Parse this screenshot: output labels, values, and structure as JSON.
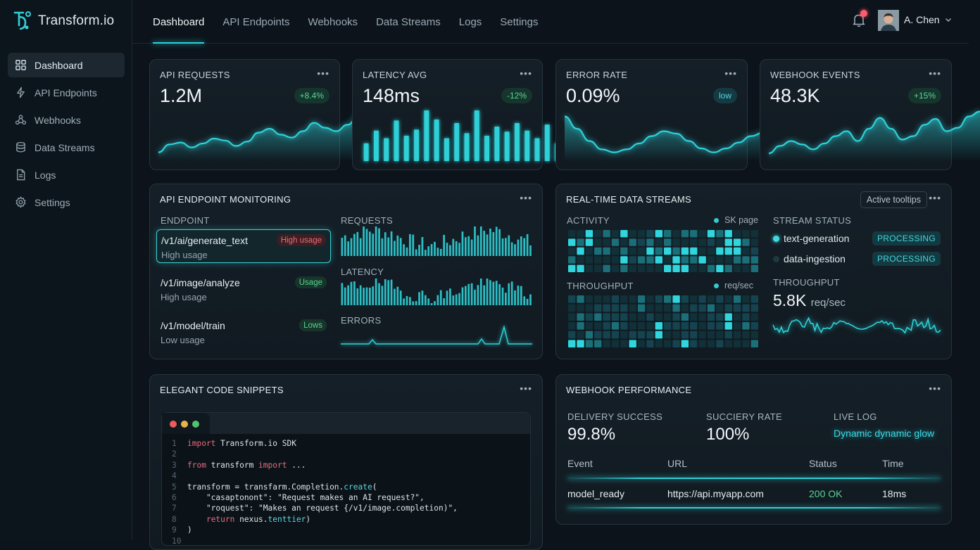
{
  "app": {
    "name": "Transform.io"
  },
  "sidebar": {
    "items": [
      {
        "label": "Dashboard",
        "icon": "grid-icon"
      },
      {
        "label": "API Endpoints",
        "icon": "lightning-icon"
      },
      {
        "label": "Webhooks",
        "icon": "webhook-icon"
      },
      {
        "label": "Data Streams",
        "icon": "database-icon"
      },
      {
        "label": "Logs",
        "icon": "document-icon"
      },
      {
        "label": "Settings",
        "icon": "gear-icon"
      }
    ]
  },
  "topnav": {
    "tabs": [
      "Dashboard",
      "API Endpoints",
      "Webhooks",
      "Data Streams",
      "Logs",
      "Settings"
    ],
    "user": "A. Chen"
  },
  "kpis": [
    {
      "title": "API REQUESTS",
      "value": "1.2M",
      "badge": "+8.4%",
      "chart": "area",
      "trend": [
        0.12,
        0.28,
        0.32,
        0.22,
        0.3,
        0.4,
        0.36,
        0.25,
        0.34,
        0.52,
        0.6,
        0.48,
        0.42,
        0.55,
        0.72,
        0.62,
        0.55,
        0.68,
        0.85,
        0.82
      ]
    },
    {
      "title": "LATENCY AVG",
      "value": "148ms",
      "badge": "-12%",
      "chart": "bars",
      "trend": [
        0.35,
        0.6,
        0.45,
        0.8,
        0.5,
        0.62,
        1.0,
        0.82,
        0.45,
        0.75,
        0.55,
        1.0,
        0.5,
        0.68,
        0.58,
        0.75,
        0.6,
        0.45,
        0.72,
        0.35,
        0.55
      ]
    },
    {
      "title": "ERROR RATE",
      "value": "0.09%",
      "badge": "low",
      "chart": "area",
      "trend": [
        0.85,
        0.6,
        0.35,
        0.18,
        0.12,
        0.18,
        0.3,
        0.45,
        0.55,
        0.5,
        0.35,
        0.2,
        0.12,
        0.2,
        0.32,
        0.45,
        0.52,
        0.42
      ]
    },
    {
      "title": "WEBHOOK EVENTS",
      "value": "48.3K",
      "badge": "+15%",
      "chart": "area",
      "trend": [
        0.1,
        0.25,
        0.35,
        0.28,
        0.18,
        0.3,
        0.45,
        0.55,
        0.35,
        0.6,
        0.82,
        0.6,
        0.38,
        0.45,
        0.68,
        0.8,
        0.55,
        0.62,
        0.85,
        0.95
      ]
    }
  ],
  "endpoint_monitoring": {
    "title": "API ENDPOINT MONITORING",
    "col_endpoint": "ENDPOINT",
    "col_requests": "REQUESTS",
    "col_latency": "LATENCY",
    "col_errors": "ERRORS",
    "endpoints": [
      {
        "path": "/v1/ai/generate_text",
        "badge": "High usage",
        "desc": "High usage"
      },
      {
        "path": "/v1/image/analyze",
        "badge": "Usage",
        "desc": "High usage"
      },
      {
        "path": "/v1/model/train",
        "badge": "Lows",
        "desc": "Low usage"
      }
    ]
  },
  "streams": {
    "title": "REAL-TIME DATA STREAMS",
    "tooltip_button": "Active tooltips",
    "activity_label": "ACTIVITY",
    "activity_legend": "SK page",
    "throughput_label": "THROUGHPUT",
    "throughput_legend": "req/sec",
    "status_label": "STREAM STATUS",
    "items": [
      {
        "name": "text-generation",
        "status": "PROCESSING"
      },
      {
        "name": "data-ingestion",
        "status": "PROCESSING"
      }
    ],
    "throughput_label2": "THROUGHPUT",
    "throughput_value": "5.8K",
    "throughput_unit": "req/sec"
  },
  "code": {
    "title": "ELEGANT CODE SNIPPETS",
    "lines": [
      {
        "n": "1",
        "a": "import",
        "b": " Transform.io SDK"
      },
      {
        "n": "2",
        "a": "",
        "b": ""
      },
      {
        "n": "3",
        "a": "from",
        "b": " transform ",
        "c": "import",
        "d": " ..."
      },
      {
        "n": "4",
        "a": "",
        "b": ""
      },
      {
        "n": "5",
        "a": "",
        "b": "transform = transfarm.Completion.",
        "f": "create",
        "g": "("
      },
      {
        "n": "6",
        "a": "",
        "b": "    \"casaptonont\": \"Request makes an AI request?\","
      },
      {
        "n": "7",
        "a": "",
        "b": "    \"roquest\": \"Makes an request {/v1/image.completion)\","
      },
      {
        "n": "8",
        "a": "",
        "b": "    ",
        "c": "return",
        "d": " nexus.",
        "f": "tenttier",
        "g": ")"
      },
      {
        "n": "9",
        "a": "",
        "b": ")"
      },
      {
        "n": "10",
        "a": "",
        "b": ""
      }
    ]
  },
  "webhook_perf": {
    "title": "WEBHOOK PERFORMANCE",
    "delivery_label": "DELIVERY SUCCESS",
    "delivery_value": "99.8%",
    "success_label": "SUCCIERY RATE",
    "success_value": "100%",
    "live_label": "LIVE LOG",
    "live_value": "Dynamic dynamic glow",
    "columns": [
      "Event",
      "URL",
      "Status",
      "Time"
    ],
    "rows": [
      {
        "event": "model_ready",
        "url": "https://api.myapp.com",
        "status": "200 OK",
        "time": "18ms"
      }
    ]
  },
  "colors": {
    "accent": "#2fd1d8",
    "success": "#55d493",
    "danger": "#ee6b75",
    "bg": "#0c131a"
  }
}
